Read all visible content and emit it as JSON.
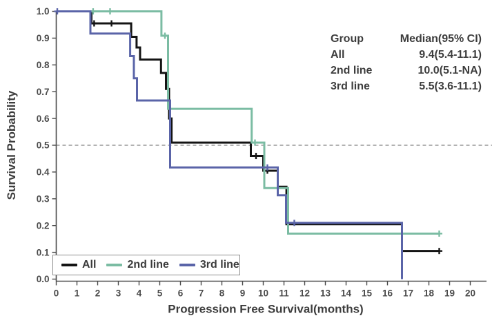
{
  "chart_data": {
    "type": "line",
    "subtype": "kaplan_meier_step_survival",
    "title": "",
    "xlabel": "Progression Free Survival(months)",
    "ylabel": "Survival Probability",
    "xlim": [
      0,
      20
    ],
    "ylim": [
      0.0,
      1.0
    ],
    "grid": false,
    "xticks": [
      "0",
      "1",
      "2",
      "3",
      "4",
      "5",
      "6",
      "7",
      "8",
      "9",
      "10",
      "11",
      "12",
      "13",
      "14",
      "15",
      "16",
      "17",
      "18",
      "19",
      "20"
    ],
    "yticks": [
      "0.0",
      "0.1",
      "0.2",
      "0.3",
      "0.4",
      "0.5",
      "0.6",
      "0.7",
      "0.8",
      "0.9",
      "1.0"
    ],
    "reference_line": {
      "y": 0.5,
      "style": "dashed",
      "color": "#999999"
    },
    "axis_color": "#4a4a4a",
    "text_color": "#3d3d3d",
    "legend": {
      "position": "bottom-left",
      "entries": [
        {
          "label": "All",
          "color": "#141414"
        },
        {
          "label": "2nd line",
          "color": "#7BBCA3"
        },
        {
          "label": "3rd line",
          "color": "#5A64A8"
        }
      ]
    },
    "annotation_table": {
      "header": {
        "group": "Group",
        "median": "Median(95% CI)"
      },
      "rows": [
        {
          "group": "All",
          "median": "9.4(5.4-11.1)"
        },
        {
          "group": "2nd line",
          "median": "10.0(5.1-NA)"
        },
        {
          "group": "3rd line",
          "median": "5.5(3.6-11.1)"
        }
      ]
    },
    "series": [
      {
        "name": "All",
        "color": "#141414",
        "steps": [
          [
            0,
            1.0
          ],
          [
            1.7,
            0.955
          ],
          [
            3.62,
            0.905
          ],
          [
            3.88,
            0.865
          ],
          [
            4.05,
            0.82
          ],
          [
            5.06,
            0.77
          ],
          [
            5.3,
            0.71
          ],
          [
            5.45,
            0.6
          ],
          [
            5.57,
            0.51
          ],
          [
            9.4,
            0.46
          ],
          [
            10.0,
            0.405
          ],
          [
            10.7,
            0.345
          ],
          [
            11.12,
            0.205
          ],
          [
            16.7,
            0.105
          ],
          [
            18.5,
            0.105
          ]
        ],
        "censor_marks": [
          [
            1.83,
            0.955
          ],
          [
            2.67,
            0.955
          ],
          [
            9.65,
            0.46
          ],
          [
            10.2,
            0.405
          ],
          [
            18.5,
            0.105
          ]
        ]
      },
      {
        "name": "2nd line",
        "color": "#7BBCA3",
        "steps": [
          [
            0,
            1.0
          ],
          [
            5.08,
            0.909
          ],
          [
            5.4,
            0.636
          ],
          [
            9.44,
            0.51
          ],
          [
            10.05,
            0.34
          ],
          [
            11.2,
            0.17
          ],
          [
            18.5,
            0.17
          ]
        ],
        "censor_marks": [
          [
            1.78,
            1.0
          ],
          [
            2.6,
            1.0
          ],
          [
            5.25,
            0.909
          ],
          [
            9.6,
            0.51
          ],
          [
            18.5,
            0.17
          ]
        ]
      },
      {
        "name": "3rd line",
        "color": "#5A64A8",
        "steps": [
          [
            0,
            1.0
          ],
          [
            1.65,
            0.917
          ],
          [
            3.57,
            0.833
          ],
          [
            3.75,
            0.75
          ],
          [
            3.9,
            0.667
          ],
          [
            5.5,
            0.417
          ],
          [
            10.7,
            0.313
          ],
          [
            11.1,
            0.21
          ],
          [
            16.7,
            0.0
          ]
        ],
        "censor_marks": [
          [
            0.05,
            1.0
          ],
          [
            10.2,
            0.417
          ],
          [
            11.5,
            0.21
          ]
        ]
      }
    ]
  }
}
